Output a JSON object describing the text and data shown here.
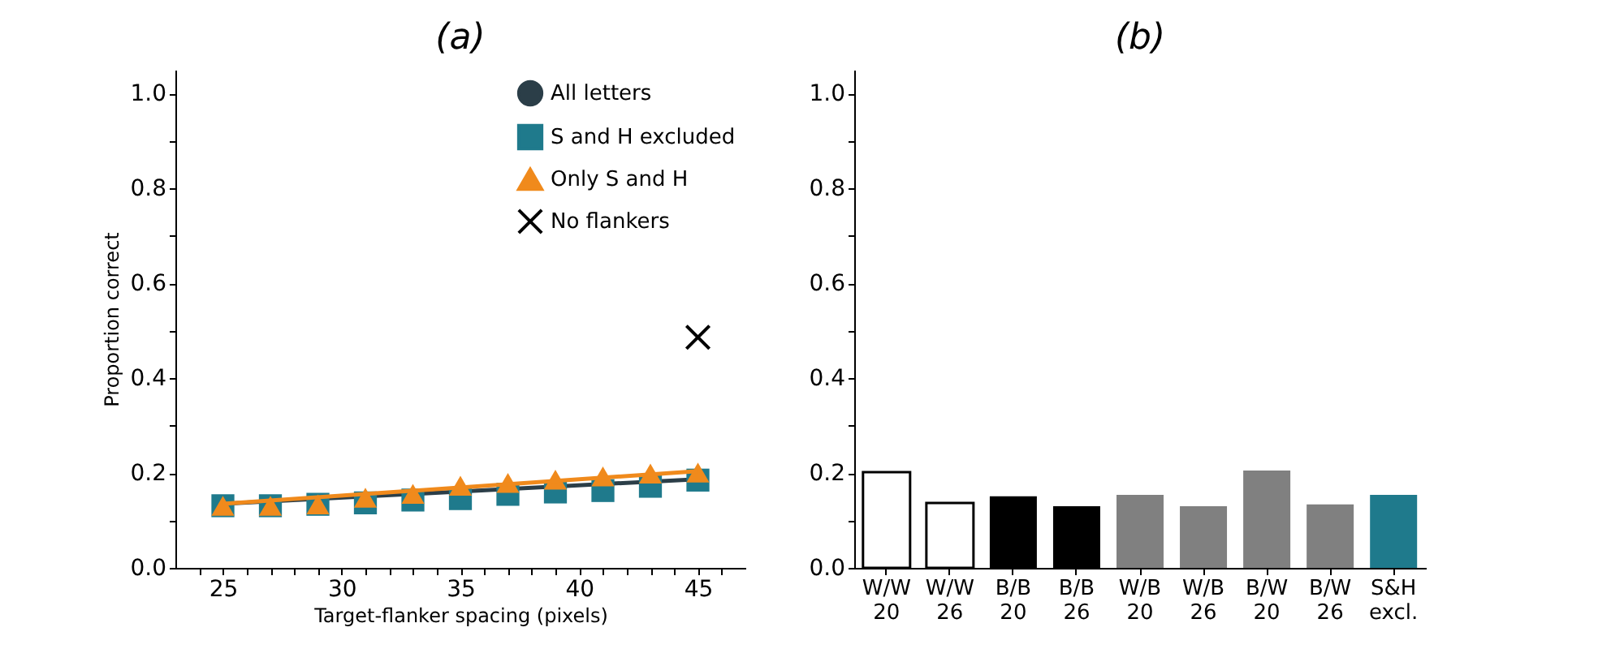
{
  "chart_data": [
    {
      "type": "line",
      "title": "(a)",
      "xlabel": "Target-flanker spacing (pixels)",
      "ylabel": "Proportion correct",
      "xlim": [
        23,
        47
      ],
      "ylim": [
        0,
        1.05
      ],
      "xticks": [
        {
          "value": 24,
          "label": null
        },
        25,
        {
          "value": 26,
          "label": null
        },
        {
          "value": 27,
          "label": null
        },
        {
          "value": 28,
          "label": null
        },
        {
          "value": 29,
          "label": null
        },
        30,
        {
          "value": 31,
          "label": null
        },
        {
          "value": 32,
          "label": null
        },
        {
          "value": 33,
          "label": null
        },
        {
          "value": 34,
          "label": null
        },
        35,
        {
          "value": 36,
          "label": null
        },
        {
          "value": 37,
          "label": null
        },
        {
          "value": 38,
          "label": null
        },
        {
          "value": 39,
          "label": null
        },
        40,
        {
          "value": 41,
          "label": null
        },
        {
          "value": 42,
          "label": null
        },
        {
          "value": 43,
          "label": null
        },
        {
          "value": 44,
          "label": null
        },
        45,
        {
          "value": 46,
          "label": null
        }
      ],
      "yticks": [
        {
          "value": 0,
          "label": "0.0"
        },
        {
          "value": 0.1,
          "label": null
        },
        {
          "value": 0.2,
          "label": "0.2"
        },
        {
          "value": 0.3,
          "label": null
        },
        {
          "value": 0.4,
          "label": "0.4"
        },
        {
          "value": 0.5,
          "label": null
        },
        {
          "value": 0.6,
          "label": "0.6"
        },
        {
          "value": 0.7,
          "label": null
        },
        {
          "value": 0.8,
          "label": "0.8"
        },
        {
          "value": 0.9,
          "label": null
        },
        {
          "value": 1.0,
          "label": "1.0"
        }
      ],
      "grid": false,
      "legend": "top right",
      "series": [
        {
          "name": "All letters",
          "type": "line",
          "color": "#2b3e48",
          "x": [
            25,
            45
          ],
          "values": [
            0.135,
            0.187
          ]
        },
        {
          "name": "S and H excluded",
          "type": "scatter",
          "marker": "square",
          "color": "#1f7a8c",
          "x": [
            25,
            27,
            29,
            31,
            33,
            35,
            37,
            39,
            41,
            43,
            45
          ],
          "values": [
            0.131,
            0.131,
            0.134,
            0.137,
            0.143,
            0.146,
            0.155,
            0.16,
            0.163,
            0.172,
            0.185
          ]
        },
        {
          "name": "Only S and H",
          "type": "scatter",
          "marker": "triangle",
          "color": "#f08a1c",
          "x": [
            25,
            27,
            29,
            31,
            33,
            35,
            37,
            39,
            41,
            43,
            45
          ],
          "values": [
            0.131,
            0.131,
            0.134,
            0.148,
            0.156,
            0.173,
            0.179,
            0.186,
            0.193,
            0.199,
            0.201
          ]
        },
        {
          "type": "line",
          "color": "#f08a1c",
          "x": [
            25,
            45
          ],
          "values": [
            0.135,
            0.204
          ]
        },
        {
          "name": "No flankers",
          "type": "scatter",
          "marker": "cross",
          "color": "#000000",
          "x": [
            45
          ],
          "values": [
            0.486
          ]
        }
      ]
    },
    {
      "type": "bar",
      "title": "(b)",
      "categories": [
        "W/W 20",
        "W/W 26",
        "B/B 20",
        "B/B 26",
        "W/B 20",
        "W/B 26",
        "B/W 20",
        "B/W 26",
        "S&H excl."
      ],
      "values": [
        0.202,
        0.137,
        0.151,
        0.13,
        0.154,
        0.13,
        0.205,
        0.134,
        0.154
      ],
      "colors": [
        "#ffffff",
        "#ffffff",
        "#000000",
        "#000000",
        "#808080",
        "#808080",
        "#808080",
        "#808080",
        "#1f7a8c"
      ],
      "ylim": [
        0,
        1.05
      ],
      "yticks": [
        {
          "value": 0,
          "label": "0.0"
        },
        {
          "value": 0.1,
          "label": null
        },
        {
          "value": 0.2,
          "label": "0.2"
        },
        {
          "value": 0.3,
          "label": null
        },
        {
          "value": 0.4,
          "label": "0.4"
        },
        {
          "value": 0.5,
          "label": null
        },
        {
          "value": 0.6,
          "label": "0.6"
        },
        {
          "value": 0.7,
          "label": null
        },
        {
          "value": 0.8,
          "label": "0.8"
        },
        {
          "value": 0.9,
          "label": null
        },
        {
          "value": 1.0,
          "label": "1.0"
        }
      ],
      "grid": false
    }
  ]
}
